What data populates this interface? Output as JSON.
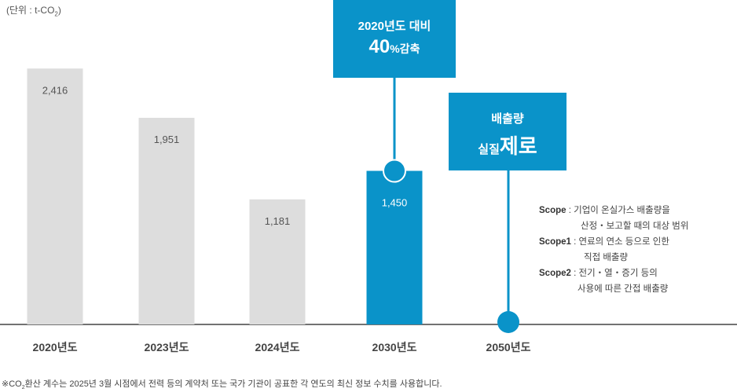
{
  "unit_label": "(단위 : t-CO",
  "unit_sub": "2",
  "unit_close": ")",
  "chart_data": {
    "type": "bar",
    "categories": [
      "2020년도",
      "2023년도",
      "2024년도",
      "2030년도",
      "2050년도"
    ],
    "values": [
      2416,
      1951,
      1181,
      1450,
      null
    ],
    "value_labels": [
      "2,416",
      "1,951",
      "1,181",
      "1,450",
      ""
    ],
    "highlight_index": 3,
    "ylim": [
      0,
      2900
    ],
    "colors": {
      "default": "#dddddd",
      "highlight": "#0a93c9",
      "axis": "#444444",
      "label": "#555555",
      "category": "#444444"
    }
  },
  "callouts": {
    "target_2030": {
      "line1": "2020년도 대비",
      "pct": "40",
      "pct_unit": "%감축"
    },
    "target_2050": {
      "line1": "배출량",
      "prefix": "실질",
      "big": "제로"
    }
  },
  "scope_notes": [
    {
      "key": "Scope ",
      "sep": " : ",
      "text": "기업이 온실가스 배출량을",
      "cont": "산정・보고할 때의 대상 범위"
    },
    {
      "key": "Scope1",
      "sep": " : ",
      "text": "연료의 연소 등으로 인한",
      "cont": "직접 배출량"
    },
    {
      "key": "Scope2",
      "sep": " : ",
      "text": "전기・열・증기 등의",
      "cont": "사용에 따른 간접 배출량"
    }
  ],
  "footnote": {
    "pre": "※CO",
    "sub": "2",
    "post": "환산 계수는 2025년 3월 시점에서 전력 등의 계약처 또는 국가 기관이 공표한 각 연도의 최신 정보 수치를 사용합니다."
  }
}
